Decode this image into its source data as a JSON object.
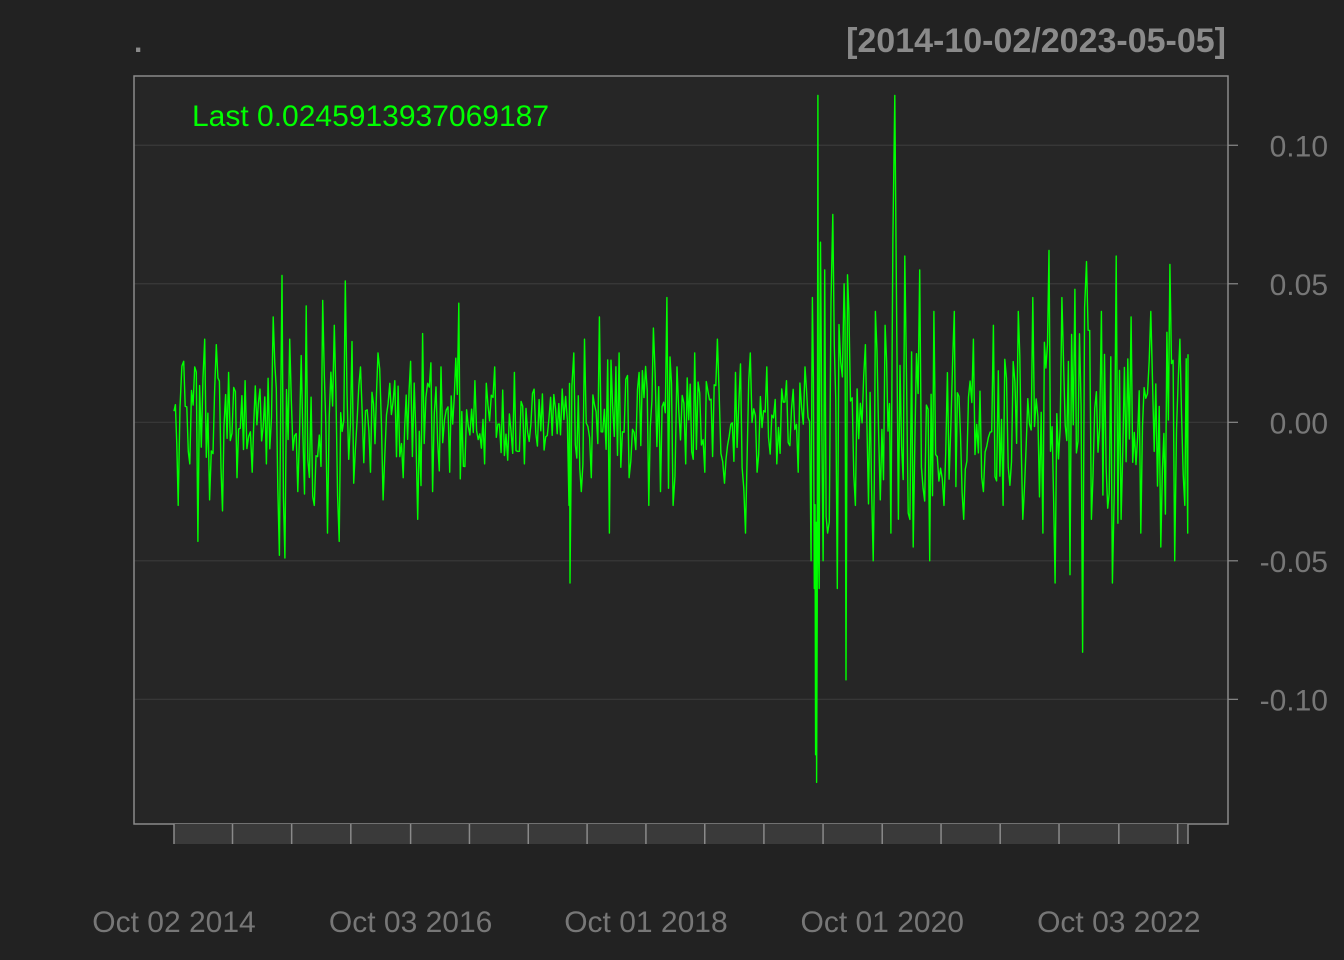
{
  "colors": {
    "background": "#222222",
    "panel": "#262626",
    "series": "#00ff00",
    "grid": "#3a3a3a",
    "axis_text": "#777777",
    "frame": "#8a8a8a"
  },
  "chart_data": {
    "type": "line",
    "title": ".",
    "date_range_label": "[2014-10-02/2023-05-05]",
    "legend_label": "Last 0.0245913937069187",
    "x_start": "2014-10-02",
    "x_end": "2023-05-05",
    "ylim": [
      -0.145,
      0.125
    ],
    "y_ticks": [
      0.1,
      0.05,
      0.0,
      -0.05,
      -0.1
    ],
    "y_tick_labels": [
      "0.10",
      "0.05",
      "0.00",
      "-0.05",
      "-0.10"
    ],
    "x_tick_labels": [
      {
        "date": "2014-10-02",
        "label": "Oct 02 2014"
      },
      {
        "date": "2016-10-03",
        "label": "Oct 03 2016"
      },
      {
        "date": "2018-10-01",
        "label": "Oct 01 2018"
      },
      {
        "date": "2020-10-01",
        "label": "Oct 01 2020"
      },
      {
        "date": "2022-10-03",
        "label": "Oct 03 2022"
      }
    ],
    "x_minor_ticks": [
      "2014-10-02",
      "2015-04-01",
      "2015-10-01",
      "2016-04-01",
      "2016-10-03",
      "2017-04-03",
      "2017-10-02",
      "2018-04-02",
      "2018-10-01",
      "2019-04-01",
      "2019-10-01",
      "2020-04-01",
      "2020-10-01",
      "2021-04-01",
      "2021-10-01",
      "2022-04-01",
      "2022-10-03",
      "2023-04-03",
      "2023-05-05"
    ],
    "grid": true,
    "series": [
      {
        "name": "",
        "points": [
          [
            "2014-10-02",
            0.004
          ],
          [
            "2014-10-15",
            -0.03
          ],
          [
            "2014-11-01",
            0.022
          ],
          [
            "2014-11-20",
            -0.015
          ],
          [
            "2014-12-05",
            0.02
          ],
          [
            "2014-12-15",
            -0.043
          ],
          [
            "2015-01-05",
            0.03
          ],
          [
            "2015-01-20",
            -0.028
          ],
          [
            "2015-02-10",
            0.028
          ],
          [
            "2015-03-01",
            -0.032
          ],
          [
            "2015-03-20",
            0.018
          ],
          [
            "2015-04-15",
            -0.02
          ],
          [
            "2015-05-10",
            0.015
          ],
          [
            "2015-06-01",
            -0.018
          ],
          [
            "2015-06-25",
            0.012
          ],
          [
            "2015-07-15",
            -0.015
          ],
          [
            "2015-08-05",
            0.038
          ],
          [
            "2015-08-24",
            -0.048
          ],
          [
            "2015-09-01",
            0.053
          ],
          [
            "2015-09-10",
            -0.049
          ],
          [
            "2015-09-25",
            0.03
          ],
          [
            "2015-10-20",
            -0.025
          ],
          [
            "2015-11-15",
            0.042
          ],
          [
            "2015-12-10",
            -0.03
          ],
          [
            "2016-01-05",
            0.044
          ],
          [
            "2016-01-20",
            -0.04
          ],
          [
            "2016-02-10",
            0.035
          ],
          [
            "2016-02-25",
            -0.043
          ],
          [
            "2016-03-15",
            0.051
          ],
          [
            "2016-04-10",
            -0.022
          ],
          [
            "2016-05-01",
            0.02
          ],
          [
            "2016-06-01",
            -0.018
          ],
          [
            "2016-06-24",
            0.025
          ],
          [
            "2016-07-10",
            -0.028
          ],
          [
            "2016-08-15",
            0.015
          ],
          [
            "2016-09-10",
            -0.02
          ],
          [
            "2016-10-03",
            0.022
          ],
          [
            "2016-10-25",
            -0.035
          ],
          [
            "2016-11-09",
            0.032
          ],
          [
            "2016-12-10",
            -0.025
          ],
          [
            "2017-01-05",
            0.02
          ],
          [
            "2017-02-01",
            -0.018
          ],
          [
            "2017-03-01",
            0.043
          ],
          [
            "2017-03-20",
            -0.016
          ],
          [
            "2017-04-20",
            0.015
          ],
          [
            "2017-05-20",
            -0.015
          ],
          [
            "2017-06-20",
            0.02
          ],
          [
            "2017-07-20",
            -0.012
          ],
          [
            "2017-08-20",
            0.018
          ],
          [
            "2017-09-20",
            -0.015
          ],
          [
            "2017-10-20",
            0.012
          ],
          [
            "2017-11-20",
            -0.01
          ],
          [
            "2017-12-20",
            0.01
          ],
          [
            "2018-01-15",
            0.012
          ],
          [
            "2018-02-05",
            -0.03
          ],
          [
            "2018-02-08",
            -0.058
          ],
          [
            "2018-02-20",
            0.025
          ],
          [
            "2018-03-15",
            -0.025
          ],
          [
            "2018-03-25",
            0.03
          ],
          [
            "2018-04-15",
            -0.02
          ],
          [
            "2018-05-10",
            0.038
          ],
          [
            "2018-06-10",
            -0.04
          ],
          [
            "2018-07-10",
            0.025
          ],
          [
            "2018-08-10",
            -0.02
          ],
          [
            "2018-09-10",
            0.018
          ],
          [
            "2018-10-10",
            -0.03
          ],
          [
            "2018-10-24",
            0.034
          ],
          [
            "2018-11-15",
            -0.025
          ],
          [
            "2018-12-05",
            0.045
          ],
          [
            "2018-12-24",
            -0.03
          ],
          [
            "2019-01-05",
            0.02
          ],
          [
            "2019-02-01",
            -0.015
          ],
          [
            "2019-03-01",
            0.025
          ],
          [
            "2019-04-01",
            -0.018
          ],
          [
            "2019-05-10",
            0.03
          ],
          [
            "2019-06-01",
            -0.022
          ],
          [
            "2019-07-05",
            0.018
          ],
          [
            "2019-08-05",
            -0.04
          ],
          [
            "2019-08-20",
            0.025
          ],
          [
            "2019-09-10",
            -0.018
          ],
          [
            "2019-10-10",
            0.02
          ],
          [
            "2019-11-10",
            -0.015
          ],
          [
            "2019-12-10",
            0.015
          ],
          [
            "2020-01-15",
            -0.018
          ],
          [
            "2020-02-05",
            0.02
          ],
          [
            "2020-02-24",
            -0.05
          ],
          [
            "2020-02-28",
            0.045
          ],
          [
            "2020-03-05",
            -0.06
          ],
          [
            "2020-03-09",
            -0.12
          ],
          [
            "2020-03-12",
            -0.13
          ],
          [
            "2020-03-16",
            0.118
          ],
          [
            "2020-03-20",
            -0.06
          ],
          [
            "2020-03-24",
            0.065
          ],
          [
            "2020-04-01",
            -0.05
          ],
          [
            "2020-04-06",
            0.055
          ],
          [
            "2020-04-15",
            -0.04
          ],
          [
            "2020-05-01",
            0.075
          ],
          [
            "2020-05-15",
            -0.06
          ],
          [
            "2020-06-05",
            0.05
          ],
          [
            "2020-06-11",
            -0.093
          ],
          [
            "2020-06-20",
            0.04
          ],
          [
            "2020-07-10",
            -0.03
          ],
          [
            "2020-08-10",
            0.028
          ],
          [
            "2020-09-03",
            -0.05
          ],
          [
            "2020-09-10",
            0.04
          ],
          [
            "2020-09-25",
            -0.028
          ],
          [
            "2020-10-10",
            0.035
          ],
          [
            "2020-10-28",
            -0.04
          ],
          [
            "2020-11-09",
            0.118
          ],
          [
            "2020-11-20",
            -0.035
          ],
          [
            "2020-12-10",
            0.06
          ],
          [
            "2021-01-05",
            -0.045
          ],
          [
            "2021-01-25",
            0.055
          ],
          [
            "2021-02-25",
            -0.05
          ],
          [
            "2021-03-10",
            0.04
          ],
          [
            "2021-04-10",
            -0.03
          ],
          [
            "2021-05-12",
            0.04
          ],
          [
            "2021-06-10",
            -0.035
          ],
          [
            "2021-07-10",
            0.03
          ],
          [
            "2021-08-10",
            -0.025
          ],
          [
            "2021-09-10",
            0.035
          ],
          [
            "2021-10-10",
            -0.03
          ],
          [
            "2021-11-26",
            0.04
          ],
          [
            "2021-12-10",
            -0.035
          ],
          [
            "2022-01-10",
            0.045
          ],
          [
            "2022-02-10",
            -0.04
          ],
          [
            "2022-03-01",
            0.062
          ],
          [
            "2022-03-20",
            -0.058
          ],
          [
            "2022-04-10",
            0.045
          ],
          [
            "2022-05-05",
            -0.055
          ],
          [
            "2022-05-20",
            0.048
          ],
          [
            "2022-06-13",
            -0.083
          ],
          [
            "2022-06-25",
            0.058
          ],
          [
            "2022-07-10",
            -0.035
          ],
          [
            "2022-08-10",
            0.04
          ],
          [
            "2022-09-13",
            -0.058
          ],
          [
            "2022-09-25",
            0.06
          ],
          [
            "2022-10-10",
            -0.035
          ],
          [
            "2022-11-10",
            0.038
          ],
          [
            "2022-12-10",
            -0.04
          ],
          [
            "2023-01-10",
            0.04
          ],
          [
            "2023-02-10",
            -0.045
          ],
          [
            "2023-03-10",
            0.057
          ],
          [
            "2023-03-25",
            -0.05
          ],
          [
            "2023-04-10",
            0.03
          ],
          [
            "2023-04-25",
            -0.03
          ],
          [
            "2023-05-04",
            -0.04
          ],
          [
            "2023-05-05",
            0.0245913937069187
          ]
        ]
      }
    ]
  }
}
